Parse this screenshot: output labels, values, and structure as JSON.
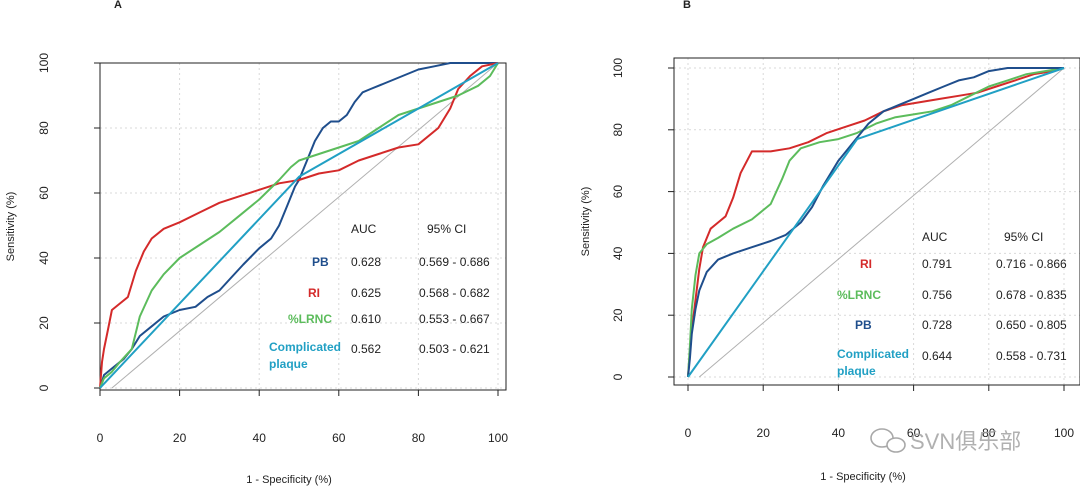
{
  "watermark": {
    "text": "SVN俱乐部",
    "icon": "wechat-icon"
  },
  "chart_data": [
    {
      "type": "line",
      "panel_label": "A",
      "xlabel": "1 - Specificity (%)",
      "ylabel": "Sensitivity (%)",
      "xlim": [
        0,
        100
      ],
      "ylim": [
        0,
        100
      ],
      "xticks": [
        "0",
        "20",
        "40",
        "60",
        "80",
        "100"
      ],
      "yticks": [
        "0",
        "20",
        "40",
        "60",
        "80",
        "100"
      ],
      "grid": true,
      "table_headers": {
        "auc": "AUC",
        "ci": "95% CI"
      },
      "series": [
        {
          "name": "PB",
          "color": "#1f4e8c",
          "auc": "0.628",
          "ci": "0.569 - 0.686",
          "points": [
            [
              0,
              0
            ],
            [
              1,
              4
            ],
            [
              3,
              6
            ],
            [
              6,
              9
            ],
            [
              8,
              12
            ],
            [
              10,
              16
            ],
            [
              13,
              19
            ],
            [
              16,
              22
            ],
            [
              20,
              24
            ],
            [
              24,
              25
            ],
            [
              27,
              28
            ],
            [
              30,
              30
            ],
            [
              33,
              34
            ],
            [
              36,
              38
            ],
            [
              40,
              43
            ],
            [
              43,
              46
            ],
            [
              45,
              50
            ],
            [
              47,
              56
            ],
            [
              49,
              62
            ],
            [
              50,
              64
            ],
            [
              52,
              70
            ],
            [
              54,
              76
            ],
            [
              56,
              80
            ],
            [
              58,
              82
            ],
            [
              60,
              82
            ],
            [
              62,
              84
            ],
            [
              64,
              88
            ],
            [
              66,
              91
            ],
            [
              68,
              92
            ],
            [
              72,
              94
            ],
            [
              76,
              96
            ],
            [
              80,
              98
            ],
            [
              84,
              99
            ],
            [
              88,
              100
            ],
            [
              92,
              100
            ],
            [
              100,
              100
            ]
          ]
        },
        {
          "name": "RI",
          "color": "#d42a2a",
          "auc": "0.625",
          "ci": "0.568 - 0.682",
          "points": [
            [
              0,
              0
            ],
            [
              0.5,
              8
            ],
            [
              1,
              12
            ],
            [
              2,
              18
            ],
            [
              3,
              24
            ],
            [
              5,
              26
            ],
            [
              7,
              28
            ],
            [
              9,
              36
            ],
            [
              11,
              42
            ],
            [
              13,
              46
            ],
            [
              16,
              49
            ],
            [
              20,
              51
            ],
            [
              25,
              54
            ],
            [
              30,
              57
            ],
            [
              35,
              59
            ],
            [
              40,
              61
            ],
            [
              45,
              63
            ],
            [
              50,
              64
            ],
            [
              55,
              66
            ],
            [
              60,
              67
            ],
            [
              65,
              70
            ],
            [
              70,
              72
            ],
            [
              75,
              74
            ],
            [
              80,
              75
            ],
            [
              85,
              80
            ],
            [
              88,
              86
            ],
            [
              90,
              92
            ],
            [
              93,
              96
            ],
            [
              96,
              99
            ],
            [
              100,
              100
            ]
          ]
        },
        {
          "name": "%LRNC",
          "color": "#5cbc5c",
          "auc": "0.610",
          "ci": "0.553 - 0.667",
          "points": [
            [
              0,
              0
            ],
            [
              1,
              3
            ],
            [
              3,
              5
            ],
            [
              5,
              8
            ],
            [
              8,
              12
            ],
            [
              10,
              22
            ],
            [
              13,
              30
            ],
            [
              16,
              35
            ],
            [
              20,
              40
            ],
            [
              25,
              44
            ],
            [
              30,
              48
            ],
            [
              35,
              53
            ],
            [
              40,
              58
            ],
            [
              45,
              64
            ],
            [
              48,
              68
            ],
            [
              50,
              70
            ],
            [
              55,
              72
            ],
            [
              60,
              74
            ],
            [
              65,
              76
            ],
            [
              70,
              80
            ],
            [
              75,
              84
            ],
            [
              80,
              86
            ],
            [
              85,
              88
            ],
            [
              90,
              90
            ],
            [
              95,
              93
            ],
            [
              98,
              96
            ],
            [
              100,
              100
            ]
          ]
        },
        {
          "name": "Complicated plaque",
          "color": "#21a0c4",
          "auc": "0.562",
          "ci": "0.503 - 0.621",
          "points": [
            [
              0,
              0
            ],
            [
              50,
              65
            ],
            [
              100,
              100
            ]
          ]
        }
      ]
    },
    {
      "type": "line",
      "panel_label": "B",
      "xlabel": "1 - Specificity (%)",
      "ylabel": "Sensitivity (%)",
      "xlim": [
        0,
        100
      ],
      "ylim": [
        0,
        100
      ],
      "xticks": [
        "0",
        "20",
        "40",
        "60",
        "80",
        "100"
      ],
      "yticks": [
        "0",
        "20",
        "40",
        "60",
        "80",
        "100"
      ],
      "grid": true,
      "table_headers": {
        "auc": "AUC",
        "ci": "95% CI"
      },
      "series": [
        {
          "name": "RI",
          "color": "#d42a2a",
          "auc": "0.791",
          "ci": "0.716 - 0.866",
          "points": [
            [
              0,
              0
            ],
            [
              0.5,
              8
            ],
            [
              1,
              15
            ],
            [
              2,
              25
            ],
            [
              3,
              35
            ],
            [
              4,
              42
            ],
            [
              6,
              48
            ],
            [
              8,
              50
            ],
            [
              10,
              52
            ],
            [
              12,
              58
            ],
            [
              14,
              66
            ],
            [
              17,
              73
            ],
            [
              22,
              73
            ],
            [
              27,
              74
            ],
            [
              32,
              76
            ],
            [
              37,
              79
            ],
            [
              42,
              81
            ],
            [
              47,
              83
            ],
            [
              52,
              86
            ],
            [
              57,
              88
            ],
            [
              62,
              89
            ],
            [
              67,
              90
            ],
            [
              72,
              91
            ],
            [
              77,
              92
            ],
            [
              82,
              94
            ],
            [
              87,
              96
            ],
            [
              92,
              98
            ],
            [
              97,
              99
            ],
            [
              100,
              100
            ]
          ]
        },
        {
          "name": "%LRNC",
          "color": "#5cbc5c",
          "auc": "0.756",
          "ci": "0.678 - 0.835",
          "points": [
            [
              0,
              0
            ],
            [
              0.5,
              10
            ],
            [
              1,
              22
            ],
            [
              2,
              33
            ],
            [
              3,
              40
            ],
            [
              5,
              43
            ],
            [
              8,
              45
            ],
            [
              12,
              48
            ],
            [
              17,
              51
            ],
            [
              22,
              56
            ],
            [
              25,
              64
            ],
            [
              27,
              70
            ],
            [
              30,
              74
            ],
            [
              35,
              76
            ],
            [
              40,
              77
            ],
            [
              45,
              79
            ],
            [
              50,
              82
            ],
            [
              55,
              84
            ],
            [
              60,
              85
            ],
            [
              65,
              86
            ],
            [
              70,
              88
            ],
            [
              75,
              91
            ],
            [
              80,
              94
            ],
            [
              85,
              96
            ],
            [
              90,
              98
            ],
            [
              95,
              99
            ],
            [
              100,
              100
            ]
          ]
        },
        {
          "name": "PB",
          "color": "#1f4e8c",
          "auc": "0.728",
          "ci": "0.650 - 0.805",
          "points": [
            [
              0,
              0
            ],
            [
              0.5,
              6
            ],
            [
              1,
              14
            ],
            [
              2,
              22
            ],
            [
              3,
              28
            ],
            [
              5,
              34
            ],
            [
              8,
              38
            ],
            [
              12,
              40
            ],
            [
              17,
              42
            ],
            [
              22,
              44
            ],
            [
              26,
              46
            ],
            [
              30,
              50
            ],
            [
              33,
              55
            ],
            [
              36,
              62
            ],
            [
              40,
              70
            ],
            [
              44,
              76
            ],
            [
              48,
              82
            ],
            [
              52,
              86
            ],
            [
              56,
              88
            ],
            [
              60,
              90
            ],
            [
              64,
              92
            ],
            [
              68,
              94
            ],
            [
              72,
              96
            ],
            [
              76,
              97
            ],
            [
              80,
              99
            ],
            [
              85,
              100
            ],
            [
              100,
              100
            ]
          ]
        },
        {
          "name": "Complicated plaque",
          "color": "#21a0c4",
          "auc": "0.644",
          "ci": "0.558 - 0.731",
          "points": [
            [
              0,
              0
            ],
            [
              45,
              77
            ],
            [
              100,
              100
            ]
          ]
        }
      ]
    }
  ]
}
